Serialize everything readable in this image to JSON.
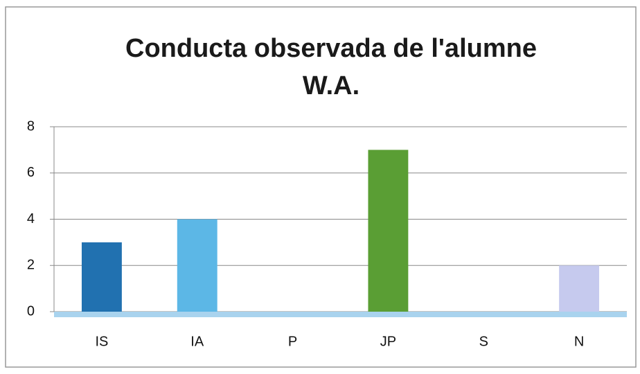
{
  "chart_data": {
    "type": "bar",
    "title": "Conducta observada de l'alumne W.A.",
    "categories": [
      "IS",
      "IA",
      "P",
      "JP",
      "S",
      "N"
    ],
    "values": [
      3,
      4,
      0,
      7,
      0,
      2
    ],
    "colors": [
      "#2171b0",
      "#5cb7e6",
      "#7fb3d9",
      "#5a9e34",
      "#9ec9e0",
      "#c6caee"
    ],
    "ylim": [
      0,
      8
    ],
    "yticks": [
      0,
      2,
      4,
      6,
      8
    ],
    "grid": true
  }
}
